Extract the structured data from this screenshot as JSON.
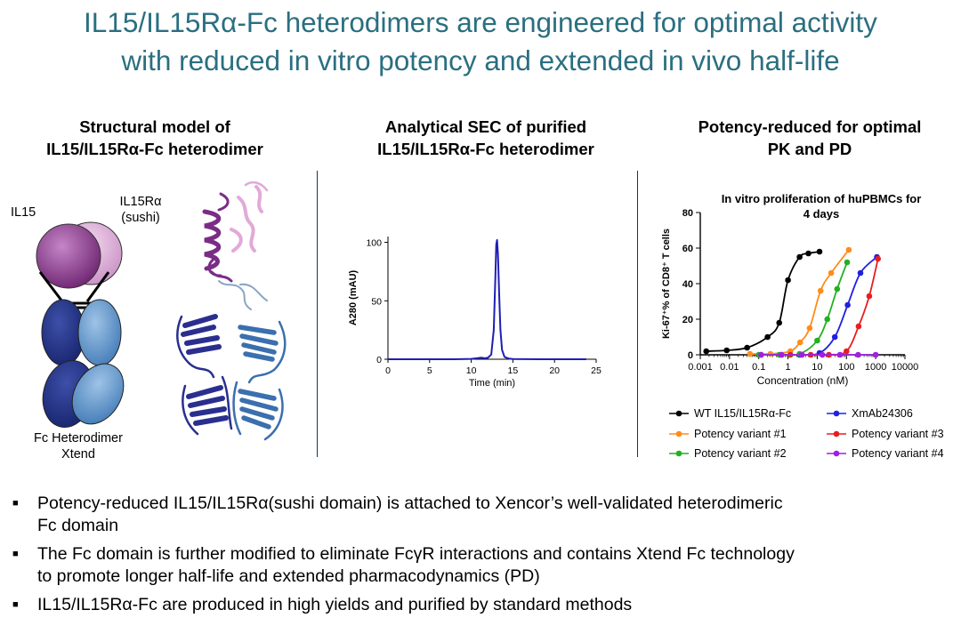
{
  "slide": {
    "title_line1": "IL15/IL15Rα-Fc heterodimers are engineered for optimal activity",
    "title_line2": "with reduced in vitro potency and extended in vivo half-life",
    "title_color": "#2a6f80"
  },
  "panel_structural": {
    "head_line1": "Structural model of",
    "head_line2": "IL15/IL15Rα-Fc heterodimer",
    "label_il15": "IL15",
    "label_receptor_line1": "IL15Rα",
    "label_receptor_line2": "(sushi)",
    "label_fc_line1": "Fc Heterodimer",
    "label_fc_line2": "Xtend"
  },
  "panel_sec": {
    "head_line1": "Analytical SEC of purified",
    "head_line2": "IL15/IL15Rα-Fc heterodimer"
  },
  "panel_potency": {
    "head_line1": "Potency-reduced for optimal",
    "head_line2": "PK and PD"
  },
  "chart_data": [
    {
      "type": "line",
      "title": "",
      "xlabel": "Time (min)",
      "ylabel": "A280 (mAU)",
      "xlim": [
        0,
        25
      ],
      "ylim": [
        0,
        105
      ],
      "xticks": [
        0,
        5,
        10,
        15,
        20,
        25
      ],
      "yticks": [
        0,
        50,
        100
      ],
      "grid": false,
      "series": [
        {
          "color": "#1f1fb4",
          "x": [
            0,
            2,
            5,
            8,
            10,
            10.8,
            11.2,
            11.6,
            12,
            12.4,
            12.7,
            12.9,
            13.0,
            13.1,
            13.2,
            13.35,
            13.5,
            13.7,
            14.0,
            14.5,
            15,
            18,
            21,
            23.8
          ],
          "y": [
            0,
            0,
            0,
            0,
            0.3,
            1.0,
            1.3,
            0.8,
            1.2,
            4,
            25,
            70,
            98,
            102,
            90,
            55,
            25,
            8,
            2,
            0.6,
            0.2,
            0,
            0,
            0
          ]
        }
      ]
    },
    {
      "type": "line",
      "title": "In vitro proliferation of huPBMCs for 4 days",
      "xlabel": "Concentration (nM)",
      "ylabel": "Ki-67⁺% of CD8⁺ T cells",
      "xscale": "log",
      "xlim": [
        0.001,
        10000
      ],
      "ylim": [
        0,
        80
      ],
      "xticks": [
        "0.001",
        "0.01",
        "0.1",
        "1",
        "10",
        "100",
        "1000",
        "10000"
      ],
      "yticks": [
        0,
        20,
        40,
        60,
        80
      ],
      "grid": false,
      "legend_position": "bottom",
      "series": [
        {
          "name": "WT IL15/IL15Rα-Fc",
          "color": "#000000",
          "x": [
            0.0016,
            0.008,
            0.04,
            0.2,
            0.5,
            1,
            2.5,
            5,
            12
          ],
          "y": [
            2,
            2.5,
            4,
            10,
            18,
            42,
            55,
            57,
            58
          ]
        },
        {
          "name": "XmAb24306",
          "color": "#2020e0",
          "x": [
            0.12,
            0.6,
            2.5,
            12,
            40,
            110,
            300,
            1100
          ],
          "y": [
            0,
            0,
            0,
            1,
            10,
            28,
            46,
            55
          ]
        },
        {
          "name": "Potency variant #1",
          "color": "#ff8c1a",
          "x": [
            0.05,
            0.25,
            1.2,
            2.6,
            5.5,
            13,
            30,
            120
          ],
          "y": [
            0.5,
            0.5,
            2,
            7,
            15,
            36,
            46,
            59
          ]
        },
        {
          "name": "Potency variant #3",
          "color": "#e81e1e",
          "x": [
            1.2,
            6,
            25,
            100,
            260,
            600,
            1200
          ],
          "y": [
            0,
            0,
            0,
            2,
            16,
            33,
            54
          ]
        },
        {
          "name": "Potency variant #2",
          "color": "#22b022",
          "x": [
            0.1,
            0.5,
            2.5,
            10,
            22,
            48,
            105
          ],
          "y": [
            0,
            0,
            0.5,
            8,
            20,
            37,
            52
          ]
        },
        {
          "name": "Potency variant #4",
          "color": "#a020e0",
          "x": [
            0.12,
            0.6,
            3,
            15,
            60,
            250,
            1000
          ],
          "y": [
            0,
            0,
            0,
            0,
            0,
            0,
            0
          ]
        }
      ]
    }
  ],
  "bullets": [
    {
      "line1": "Potency-reduced IL15/IL15Rα(sushi domain) is attached to Xencor’s well-validated heterodimeric",
      "line2": "Fc domain"
    },
    {
      "line1": "The Fc domain is further modified to eliminate FcγR interactions and contains Xtend Fc technology",
      "line2": "to promote longer half-life and extended pharmacodynamics (PD)"
    },
    {
      "line1": "IL15/IL15Rα-Fc are produced in high yields and purified by standard methods",
      "line2": ""
    }
  ]
}
